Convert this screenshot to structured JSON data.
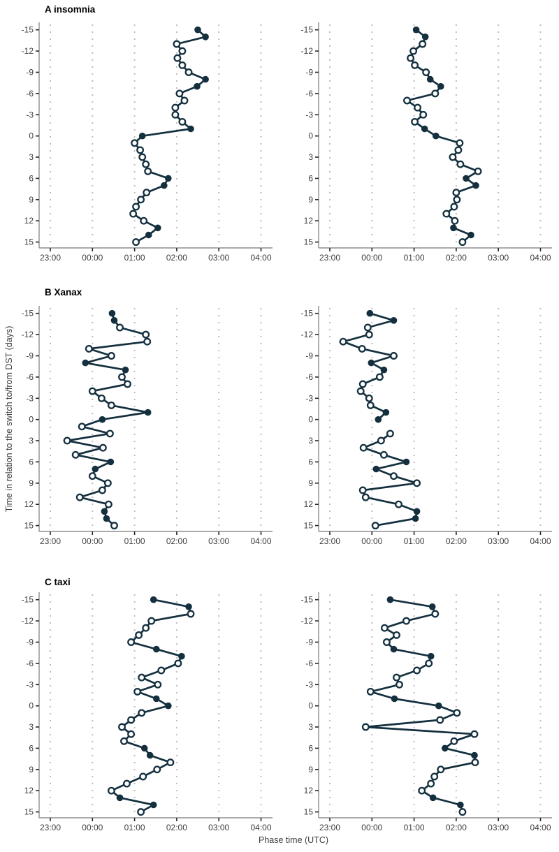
{
  "chart_data": {
    "type": "line",
    "title": "",
    "xlabel": "Phase time (UTC)",
    "ylabel": "Time in relation to the switch to/from DST (days)",
    "x_ticks": [
      "23:00",
      "00:00",
      "01:00",
      "02:00",
      "03:00",
      "04:00"
    ],
    "x_range_hours": [
      23,
      28
    ],
    "y_ticks": [
      -15,
      -12,
      -9,
      -6,
      -3,
      0,
      3,
      6,
      9,
      12,
      15
    ],
    "y_axis_inverted": true,
    "grid": "vertical-dotted",
    "legend": "none",
    "marker_filled_days": [
      -15,
      -14,
      -8,
      -7,
      -1,
      0,
      6,
      7,
      13,
      14
    ],
    "colors": {
      "marker": "#14303f",
      "grid": "#bdbdbd",
      "axis": "#8e8e8e",
      "tick": "#262626",
      "text": "#3d3d3d",
      "background": "#ffffff"
    },
    "rows": [
      {
        "title": "A insomnia",
        "panels": [
          {
            "points": [
              [
                -15,
                "02:30",
                1
              ],
              [
                -14,
                "02:41",
                1
              ],
              [
                -13,
                "02:00",
                0
              ],
              [
                -12,
                "02:08",
                0
              ],
              [
                -11,
                "02:01",
                0
              ],
              [
                -10,
                "02:08",
                0
              ],
              [
                -9,
                "02:17",
                0
              ],
              [
                -8,
                "02:41",
                1
              ],
              [
                -7,
                "02:29",
                1
              ],
              [
                -6,
                "02:04",
                0
              ],
              [
                -5,
                "02:11",
                0
              ],
              [
                -4,
                "01:58",
                0
              ],
              [
                -3,
                "01:58",
                0
              ],
              [
                -2,
                "02:08",
                0
              ],
              [
                -1,
                "02:20",
                1
              ],
              [
                0,
                "01:11",
                1
              ],
              [
                1,
                "01:00",
                0
              ],
              [
                2,
                "01:08",
                0
              ],
              [
                3,
                "01:11",
                0
              ],
              [
                4,
                "01:16",
                0
              ],
              [
                5,
                "01:19",
                0
              ],
              [
                6,
                "01:48",
                1
              ],
              [
                7,
                "01:42",
                1
              ],
              [
                8,
                "01:17",
                0
              ],
              [
                9,
                "01:09",
                0
              ],
              [
                10,
                "01:02",
                0
              ],
              [
                11,
                "00:58",
                0
              ],
              [
                12,
                "01:13",
                0
              ],
              [
                13,
                "01:33",
                1
              ],
              [
                14,
                "01:20",
                1
              ],
              [
                15,
                "01:02",
                0
              ]
            ]
          },
          {
            "points": [
              [
                -15,
                "01:03",
                1
              ],
              [
                -14,
                "01:16",
                1
              ],
              [
                -13,
                "01:12",
                0
              ],
              [
                -12,
                "00:59",
                0
              ],
              [
                -11,
                "00:55",
                0
              ],
              [
                -10,
                "01:01",
                0
              ],
              [
                -9,
                "01:17",
                0
              ],
              [
                -8,
                "01:23",
                1
              ],
              [
                -7,
                "01:38",
                1
              ],
              [
                -6,
                "01:30",
                0
              ],
              [
                -5,
                "00:50",
                0
              ],
              [
                -4,
                "01:05",
                0
              ],
              [
                -3,
                "01:13",
                0
              ],
              [
                -2,
                "01:01",
                0
              ],
              [
                -1,
                "01:15",
                1
              ],
              [
                0,
                "01:31",
                1
              ],
              [
                1,
                "02:05",
                0
              ],
              [
                2,
                "02:03",
                0
              ],
              [
                3,
                "01:55",
                0
              ],
              [
                4,
                "02:06",
                0
              ],
              [
                5,
                "02:31",
                0
              ],
              [
                6,
                "02:14",
                1
              ],
              [
                7,
                "02:28",
                1
              ],
              [
                8,
                "02:00",
                0
              ],
              [
                9,
                "02:01",
                0
              ],
              [
                10,
                "01:57",
                0
              ],
              [
                11,
                "01:46",
                0
              ],
              [
                12,
                "01:58",
                0
              ],
              [
                13,
                "01:56",
                1
              ],
              [
                14,
                "02:21",
                1
              ],
              [
                15,
                "02:09",
                0
              ]
            ]
          }
        ]
      },
      {
        "title": "B Xanax",
        "panels": [
          {
            "points": [
              [
                -15,
                "00:28",
                1
              ],
              [
                -14,
                "00:31",
                1
              ],
              [
                -13,
                "00:39",
                0
              ],
              [
                -12,
                "01:16",
                0
              ],
              [
                -11,
                "01:18",
                0
              ],
              [
                -10,
                "23:55",
                0
              ],
              [
                -9,
                "00:27",
                0
              ],
              [
                -8,
                "23:50",
                1
              ],
              [
                -7,
                "00:47",
                1
              ],
              [
                -6,
                "00:42",
                0
              ],
              [
                -5,
                "00:50",
                0
              ],
              [
                -4,
                "00:00",
                0
              ],
              [
                -3,
                "00:13",
                0
              ],
              [
                -2,
                "00:27",
                0
              ],
              [
                -1,
                "01:19",
                1
              ],
              [
                0,
                "00:14",
                1
              ],
              [
                1,
                "23:45",
                0
              ],
              [
                2,
                "00:25",
                0
              ],
              [
                3,
                "23:24",
                0
              ],
              [
                4,
                "00:15",
                0
              ],
              [
                5,
                "23:36",
                0
              ],
              [
                6,
                "00:26",
                1
              ],
              [
                7,
                "00:04",
                1
              ],
              [
                8,
                "00:00",
                0
              ],
              [
                9,
                "00:22",
                0
              ],
              [
                10,
                "00:14",
                0
              ],
              [
                11,
                "23:42",
                0
              ],
              [
                12,
                "00:23",
                0
              ],
              [
                13,
                "00:17",
                1
              ],
              [
                14,
                "00:20",
                1
              ],
              [
                15,
                "00:31",
                0
              ]
            ]
          },
          {
            "points": [
              [
                -15,
                "23:57",
                1
              ],
              [
                -14,
                "00:31",
                1
              ],
              [
                -13,
                "23:54",
                0
              ],
              [
                -12,
                "23:56",
                0
              ],
              [
                -11,
                "23:19",
                0
              ],
              [
                -10,
                "23:46",
                0
              ],
              [
                -9,
                "00:31",
                0
              ],
              [
                -8,
                "23:59",
                1
              ],
              [
                -7,
                "00:17",
                1
              ],
              [
                -6,
                "00:11",
                0
              ],
              [
                -5,
                "23:47",
                0
              ],
              [
                -4,
                "23:44",
                0
              ],
              [
                -3,
                "23:56",
                0
              ],
              [
                -2,
                "23:58",
                0
              ],
              [
                -1,
                "00:20",
                1
              ],
              [
                0,
                "00:09",
                1
              ],
              [
                2,
                "00:26",
                0
              ],
              [
                3,
                "00:13",
                0
              ],
              [
                4,
                "23:48",
                0
              ],
              [
                5,
                "00:17",
                0
              ],
              [
                6,
                "00:49",
                1
              ],
              [
                7,
                "00:06",
                1
              ],
              [
                8,
                "00:31",
                0
              ],
              [
                9,
                "01:04",
                0
              ],
              [
                10,
                "23:47",
                0
              ],
              [
                11,
                "23:51",
                0
              ],
              [
                12,
                "00:38",
                0
              ],
              [
                13,
                "01:04",
                1
              ],
              [
                14,
                "01:02",
                1
              ],
              [
                15,
                "00:05",
                0
              ]
            ]
          }
        ]
      },
      {
        "title": "C taxi",
        "panels": [
          {
            "points": [
              [
                -15,
                "01:27",
                1
              ],
              [
                -14,
                "02:17",
                1
              ],
              [
                -13,
                "02:20",
                0
              ],
              [
                -12,
                "01:24",
                0
              ],
              [
                -11,
                "01:16",
                0
              ],
              [
                -10,
                "01:06",
                0
              ],
              [
                -9,
                "00:55",
                0
              ],
              [
                -8,
                "01:31",
                1
              ],
              [
                -7,
                "02:07",
                1
              ],
              [
                -6,
                "02:02",
                0
              ],
              [
                -5,
                "01:38",
                0
              ],
              [
                -4,
                "01:10",
                0
              ],
              [
                -3,
                "01:33",
                0
              ],
              [
                -2,
                "01:04",
                0
              ],
              [
                -1,
                "01:31",
                1
              ],
              [
                0,
                "01:48",
                1
              ],
              [
                1,
                "01:10",
                0
              ],
              [
                2,
                "00:55",
                0
              ],
              [
                3,
                "00:42",
                0
              ],
              [
                4,
                "00:55",
                0
              ],
              [
                5,
                "00:45",
                0
              ],
              [
                6,
                "01:14",
                1
              ],
              [
                7,
                "01:22",
                1
              ],
              [
                8,
                "01:51",
                0
              ],
              [
                9,
                "01:32",
                0
              ],
              [
                10,
                "01:12",
                0
              ],
              [
                11,
                "00:49",
                0
              ],
              [
                12,
                "00:27",
                0
              ],
              [
                13,
                "00:39",
                1
              ],
              [
                14,
                "01:27",
                1
              ],
              [
                15,
                "01:09",
                0
              ]
            ]
          },
          {
            "points": [
              [
                -15,
                "00:26",
                1
              ],
              [
                -14,
                "01:26",
                1
              ],
              [
                -13,
                "01:30",
                0
              ],
              [
                -12,
                "00:49",
                0
              ],
              [
                -11,
                "00:18",
                0
              ],
              [
                -10,
                "00:35",
                0
              ],
              [
                -9,
                "00:21",
                0
              ],
              [
                -8,
                "00:31",
                1
              ],
              [
                -7,
                "01:24",
                1
              ],
              [
                -6,
                "01:21",
                0
              ],
              [
                -5,
                "01:04",
                0
              ],
              [
                -4,
                "00:35",
                0
              ],
              [
                -3,
                "00:39",
                0
              ],
              [
                -2,
                "23:58",
                0
              ],
              [
                -1,
                "00:32",
                1
              ],
              [
                0,
                "01:35",
                1
              ],
              [
                1,
                "02:01",
                0
              ],
              [
                2,
                "01:37",
                0
              ],
              [
                3,
                "23:51",
                0
              ],
              [
                4,
                "02:26",
                0
              ],
              [
                5,
                "01:57",
                0
              ],
              [
                6,
                "01:44",
                1
              ],
              [
                7,
                "02:26",
                1
              ],
              [
                8,
                "02:27",
                0
              ],
              [
                9,
                "01:38",
                0
              ],
              [
                10,
                "01:29",
                0
              ],
              [
                11,
                "01:24",
                0
              ],
              [
                12,
                "01:11",
                0
              ],
              [
                13,
                "01:27",
                1
              ],
              [
                14,
                "02:06",
                1
              ],
              [
                15,
                "02:09",
                0
              ]
            ]
          }
        ]
      }
    ]
  }
}
